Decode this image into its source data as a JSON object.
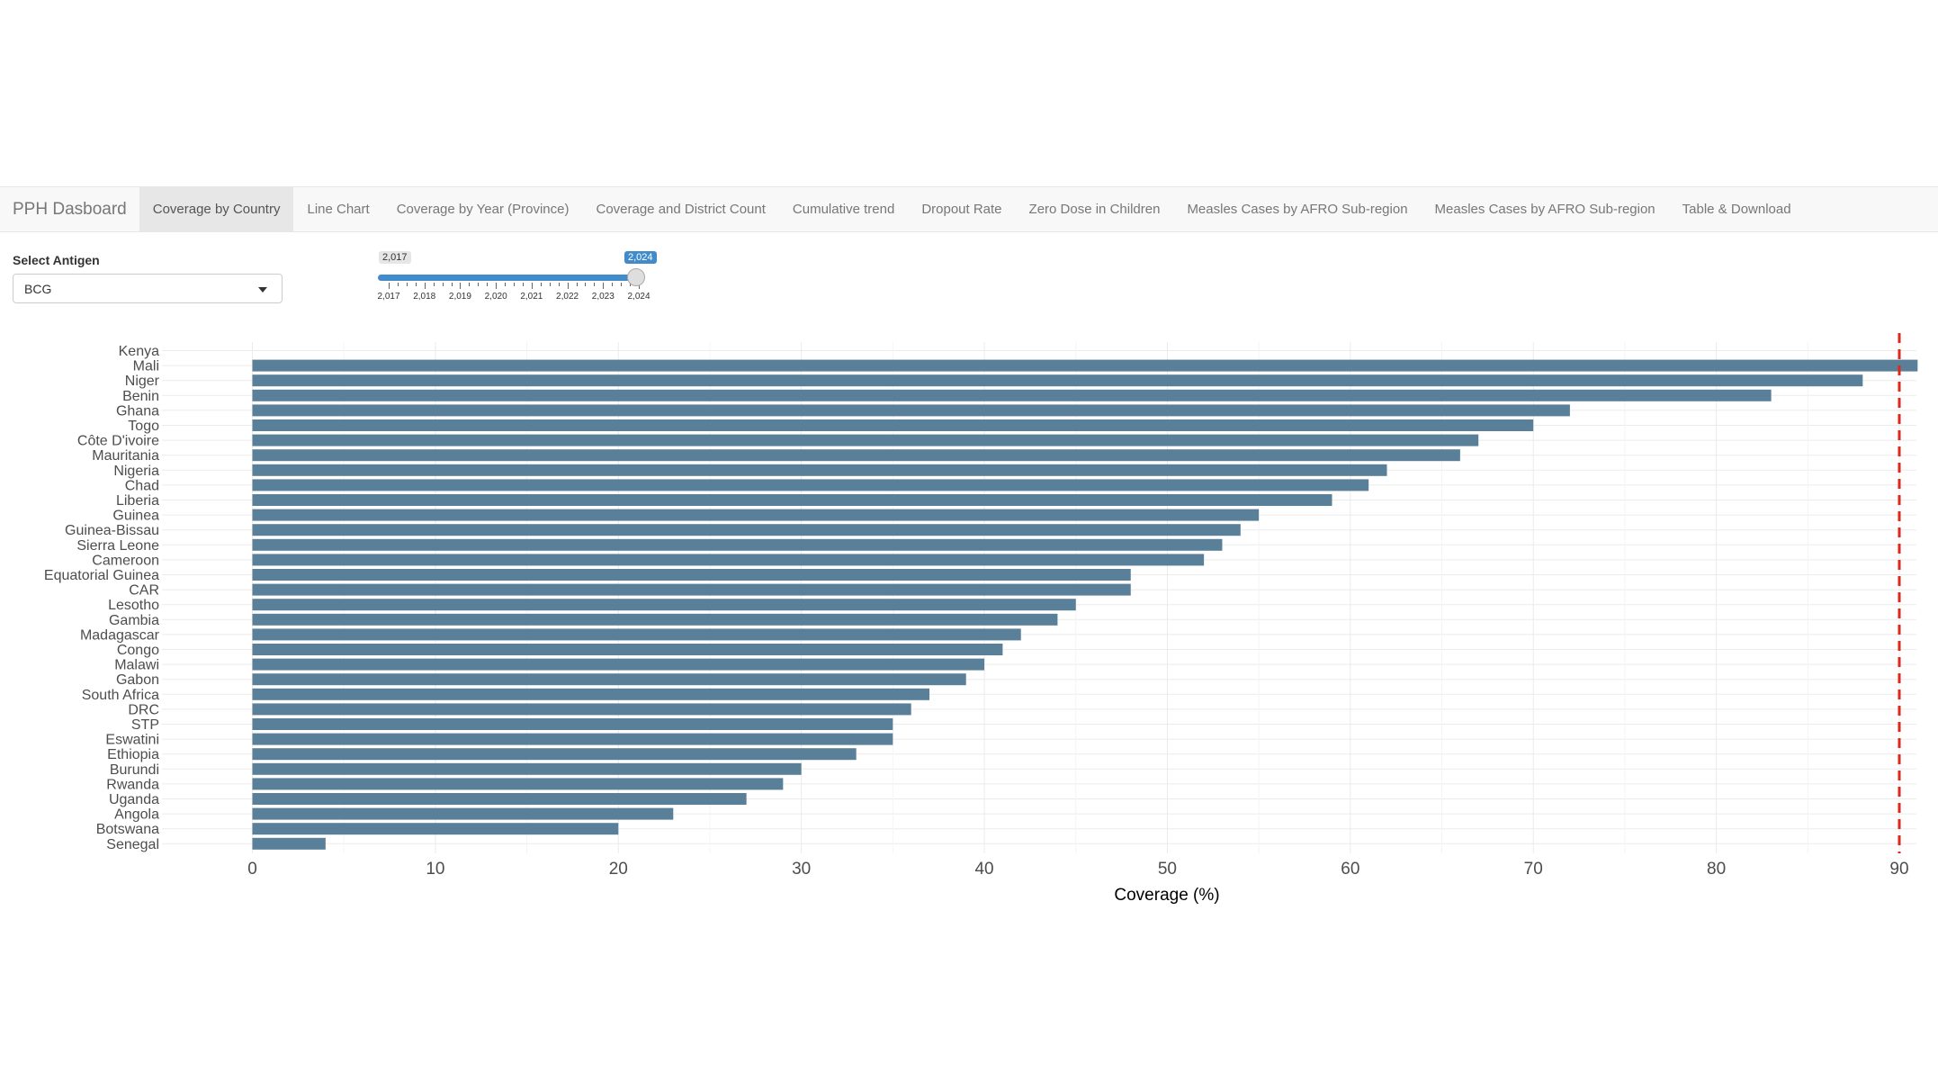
{
  "navbar": {
    "brand": "PPH Dasboard",
    "tabs": [
      {
        "label": "Coverage by Country",
        "active": true
      },
      {
        "label": "Line Chart"
      },
      {
        "label": "Coverage by Year (Province)"
      },
      {
        "label": "Coverage and District Count"
      },
      {
        "label": "Cumulative trend"
      },
      {
        "label": "Dropout Rate"
      },
      {
        "label": "Zero Dose in Children"
      },
      {
        "label": "Measles Cases by AFRO Sub-region"
      },
      {
        "label": "Measles Cases by AFRO Sub-region"
      },
      {
        "label": "Table & Download"
      }
    ]
  },
  "controls": {
    "antigen_label": "Select Antigen",
    "antigen_value": "BCG",
    "year_slider": {
      "min_label": "2,017",
      "max_label": "2,024",
      "ticks": [
        "2,017",
        "2,018",
        "2,019",
        "2,020",
        "2,021",
        "2,022",
        "2,023",
        "2,024"
      ],
      "min": 2017,
      "max": 2024,
      "value": 2024
    }
  },
  "chart_data": {
    "type": "bar",
    "orientation": "horizontal",
    "title": "",
    "xlabel": "Coverage (%)",
    "ylabel": "",
    "xlim": [
      -5,
      91.5
    ],
    "xticks": [
      0,
      10,
      20,
      30,
      40,
      50,
      60,
      70,
      80,
      90
    ],
    "grid": true,
    "bar_color": "#5a8099",
    "reference_line": {
      "x": 90,
      "color": "#e0271b",
      "style": "dashed"
    },
    "categories": [
      "Kenya",
      "Mali",
      "Niger",
      "Benin",
      "Ghana",
      "Togo",
      "Côte D'ivoire",
      "Mauritania",
      "Nigeria",
      "Chad",
      "Liberia",
      "Guinea",
      "Guinea-Bissau",
      "Sierra Leone",
      "Cameroon",
      "Equatorial Guinea",
      "CAR",
      "Lesotho",
      "Gambia",
      "Madagascar",
      "Congo",
      "Malawi",
      "Gabon",
      "South Africa",
      "DRC",
      "STP",
      "Eswatini",
      "Ethiopia",
      "Burundi",
      "Rwanda",
      "Uganda",
      "Angola",
      "Botswana",
      "Senegal"
    ],
    "values": [
      null,
      91,
      88,
      83,
      72,
      70,
      67,
      66,
      62,
      61,
      59,
      55,
      54,
      53,
      52,
      48,
      48,
      45,
      44,
      42,
      41,
      40,
      39,
      37,
      36,
      35,
      35,
      33,
      30,
      29,
      27,
      23,
      20,
      4
    ]
  }
}
